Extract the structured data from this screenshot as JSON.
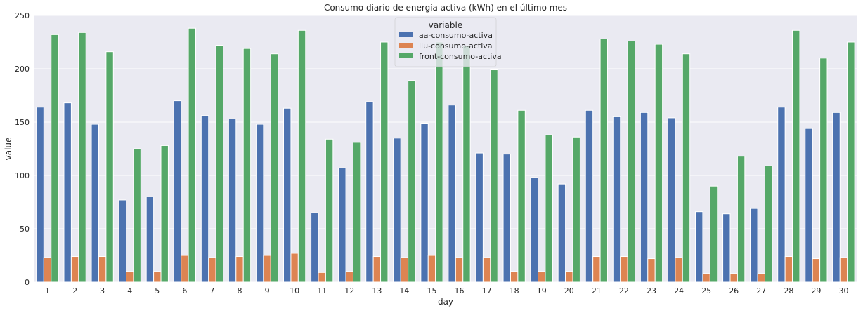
{
  "chart_data": {
    "type": "bar",
    "title": "Consumo diario de energía activa (kWh) en el último mes",
    "xlabel": "day",
    "ylabel": "value",
    "ylim": [
      0,
      250
    ],
    "yticks": [
      0,
      50,
      100,
      150,
      200,
      250
    ],
    "grid": true,
    "legend": {
      "title": "variable",
      "placement": "top-center"
    },
    "categories": [
      "1",
      "2",
      "3",
      "4",
      "5",
      "6",
      "7",
      "8",
      "9",
      "10",
      "11",
      "12",
      "13",
      "14",
      "15",
      "16",
      "17",
      "18",
      "19",
      "20",
      "21",
      "22",
      "23",
      "24",
      "25",
      "26",
      "27",
      "28",
      "29",
      "30"
    ],
    "series": [
      {
        "name": "aa-consumo-activa",
        "color": "#4c72b0",
        "values": [
          164,
          168,
          148,
          77,
          80,
          170,
          156,
          153,
          148,
          163,
          65,
          107,
          169,
          135,
          149,
          166,
          121,
          120,
          98,
          92,
          161,
          155,
          159,
          154,
          66,
          64,
          69,
          164,
          144,
          159
        ]
      },
      {
        "name": "ilu-consumo-activa",
        "color": "#dd8452",
        "values": [
          23,
          24,
          24,
          10,
          10,
          25,
          23,
          24,
          25,
          27,
          9,
          10,
          24,
          23,
          25,
          23,
          23,
          10,
          10,
          10,
          24,
          24,
          22,
          23,
          8,
          8,
          8,
          24,
          22,
          23
        ]
      },
      {
        "name": "front-consumo-activa",
        "color": "#55a868",
        "values": [
          232,
          234,
          216,
          125,
          128,
          238,
          222,
          219,
          214,
          236,
          134,
          131,
          225,
          189,
          225,
          222,
          199,
          161,
          138,
          136,
          228,
          226,
          223,
          214,
          90,
          118,
          109,
          236,
          210,
          225
        ]
      }
    ]
  }
}
